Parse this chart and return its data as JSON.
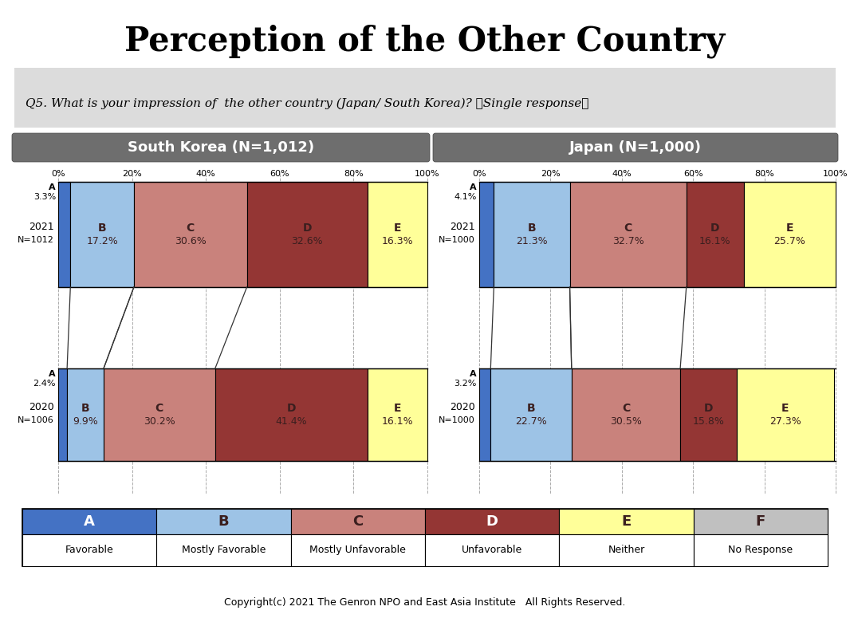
{
  "title": "Perception of the Other Country",
  "question": "Q5. What is your impression of  the other country (Japan/ South Korea)? 【Single response】",
  "sk_header": "South Korea (N=1,012)",
  "jp_header": "Japan (N=1,000)",
  "sk_2021": {
    "year": "2021",
    "n": "N=1012",
    "A": 3.3,
    "B": 17.2,
    "C": 30.6,
    "D": 32.6,
    "E": 16.3
  },
  "sk_2020": {
    "year": "2020",
    "n": "N=1006",
    "A": 2.4,
    "B": 9.9,
    "C": 30.2,
    "D": 41.4,
    "E": 16.1
  },
  "jp_2021": {
    "year": "2021",
    "n": "N=1000",
    "A": 4.1,
    "B": 21.3,
    "C": 32.7,
    "D": 16.1,
    "E": 25.7
  },
  "jp_2020": {
    "year": "2020",
    "n": "N=1000",
    "A": 3.2,
    "B": 22.7,
    "C": 30.5,
    "D": 15.8,
    "E": 27.3
  },
  "colors": {
    "A": "#4472C4",
    "B": "#9DC3E6",
    "C": "#C9827C",
    "D": "#943634",
    "E": "#FFFF99",
    "F": "#C0C0C0"
  },
  "legend_keys": [
    "A",
    "B",
    "C",
    "D",
    "E",
    "F"
  ],
  "legend_labels": {
    "A": "Favorable",
    "B": "Mostly Favorable",
    "C": "Mostly Unfavorable",
    "D": "Unfavorable",
    "E": "Neither",
    "F": "No Response"
  },
  "footer": "Copyright(c) 2021 The Genron NPO and East Asia Institute   All Rights Reserved.",
  "bar_text_color": "#3B1F1F",
  "connect_segs": [
    "B",
    "C"
  ]
}
